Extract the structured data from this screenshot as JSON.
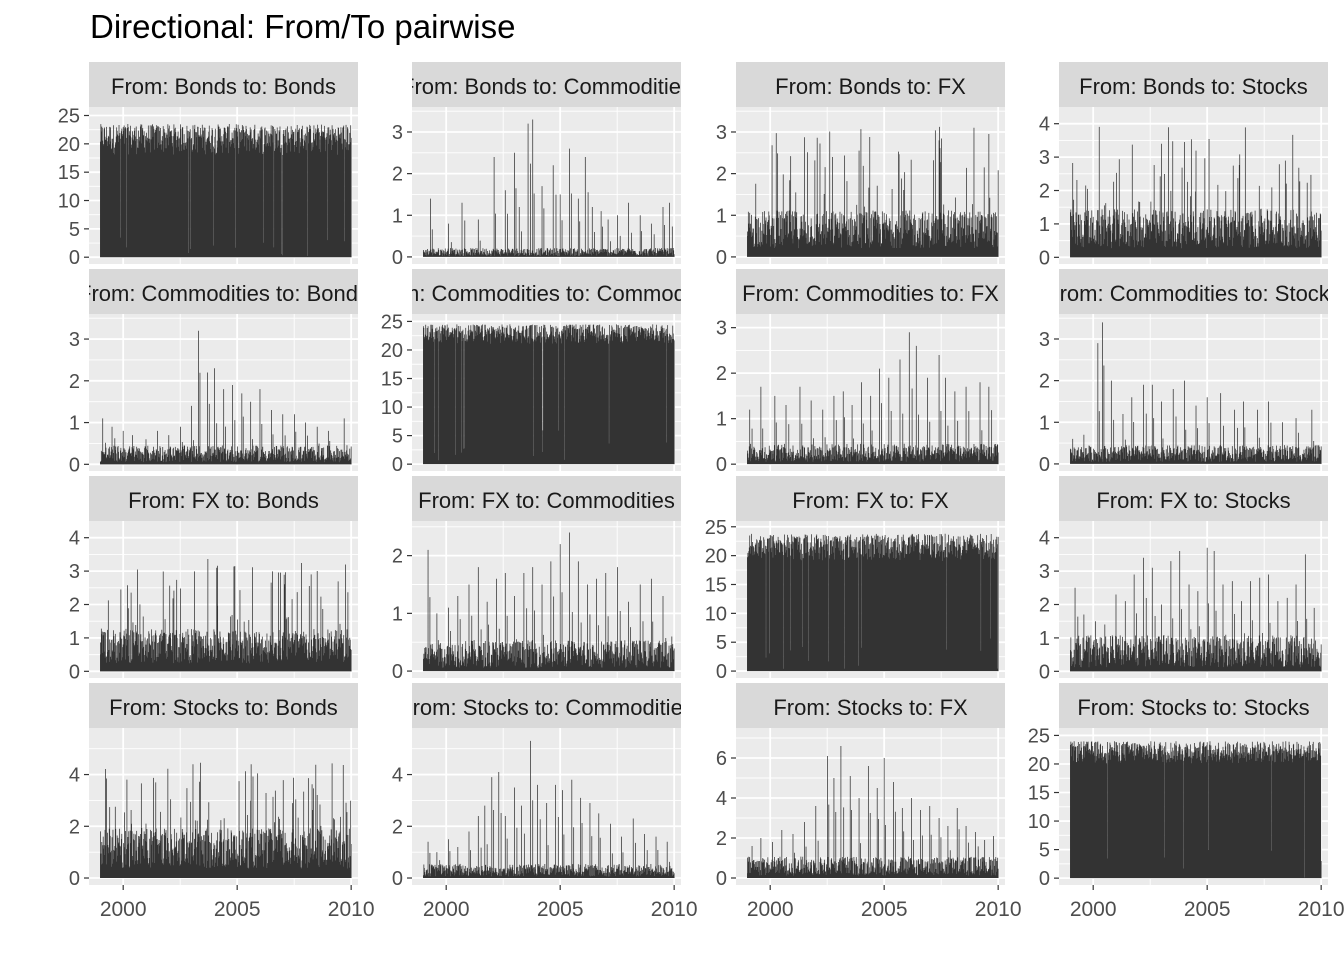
{
  "title": "Directional: From/To pairwise",
  "colors": {
    "panel_bg": "#ebebeb",
    "strip_bg": "#d9d9d9",
    "grid": "#ffffff",
    "bar": "#333333",
    "text": "#4d4d4d",
    "strip_text": "#1a1a1a"
  },
  "chart_data": {
    "type": "bar",
    "facet_grid": {
      "rows": 4,
      "cols": 4
    },
    "x_ticks": [
      "2000",
      "2005",
      "2010"
    ],
    "xlim": [
      1998.5,
      2010.3
    ],
    "data_range": [
      1999.0,
      2010.0
    ],
    "panels": [
      {
        "label": "From: Bonds  to: Bonds",
        "yticks": [
          "0",
          "5",
          "10",
          "15",
          "20",
          "25"
        ],
        "ylim": [
          -1.2,
          26.5
        ],
        "profile": {
          "kind": "dense",
          "base": 18.0,
          "max": 23.5
        }
      },
      {
        "label": "From: Bonds  to: Commodities",
        "yticks": [
          "0",
          "1",
          "2",
          "3"
        ],
        "ylim": [
          -0.17,
          3.6
        ],
        "profile": {
          "kind": "sparse",
          "base": 0.12,
          "spikes": [
            [
              1999.3,
              1.4
            ],
            [
              2000.1,
              0.8
            ],
            [
              2000.7,
              1.3
            ],
            [
              2001.4,
              0.9
            ],
            [
              2002.1,
              2.4
            ],
            [
              2002.6,
              1.6
            ],
            [
              2003.0,
              2.5
            ],
            [
              2003.2,
              1.2
            ],
            [
              2003.6,
              3.2
            ],
            [
              2003.8,
              3.3
            ],
            [
              2004.2,
              1.7
            ],
            [
              2004.7,
              2.2
            ],
            [
              2005.0,
              1.5
            ],
            [
              2005.4,
              2.6
            ],
            [
              2005.8,
              1.4
            ],
            [
              2006.1,
              2.4
            ],
            [
              2006.4,
              1.2
            ],
            [
              2006.8,
              1.1
            ],
            [
              2007.1,
              0.9
            ],
            [
              2007.5,
              1.0
            ],
            [
              2008.0,
              1.3
            ],
            [
              2008.5,
              1.0
            ],
            [
              2009.0,
              0.8
            ],
            [
              2009.5,
              1.2
            ],
            [
              2009.8,
              1.3
            ]
          ]
        }
      },
      {
        "label": "From: Bonds  to: FX",
        "yticks": [
          "0",
          "1",
          "2",
          "3"
        ],
        "ylim": [
          -0.17,
          3.6
        ],
        "profile": {
          "kind": "medium",
          "base": 0.7,
          "max": 3.3
        }
      },
      {
        "label": "From: Bonds  to: Stocks",
        "yticks": [
          "0",
          "1",
          "2",
          "3",
          "4"
        ],
        "ylim": [
          -0.2,
          4.5
        ],
        "profile": {
          "kind": "medium",
          "base": 0.9,
          "max": 4.0
        }
      },
      {
        "label": "From: Commodities  to: Bonds",
        "yticks": [
          "0",
          "1",
          "2",
          "3"
        ],
        "ylim": [
          -0.16,
          3.6
        ],
        "profile": {
          "kind": "sparse",
          "base": 0.25,
          "spikes": [
            [
              1999.1,
              1.1
            ],
            [
              1999.5,
              0.9
            ],
            [
              2000.0,
              0.8
            ],
            [
              2000.4,
              0.7
            ],
            [
              2001.0,
              0.6
            ],
            [
              2001.5,
              0.8
            ],
            [
              2002.0,
              0.7
            ],
            [
              2002.5,
              0.9
            ],
            [
              2003.0,
              1.4
            ],
            [
              2003.3,
              3.2
            ],
            [
              2003.7,
              2.2
            ],
            [
              2004.0,
              2.3
            ],
            [
              2004.4,
              1.8
            ],
            [
              2004.8,
              1.9
            ],
            [
              2005.2,
              1.7
            ],
            [
              2005.6,
              1.5
            ],
            [
              2006.0,
              1.8
            ],
            [
              2006.5,
              1.3
            ],
            [
              2007.0,
              1.2
            ],
            [
              2007.5,
              1.2
            ],
            [
              2008.0,
              1.0
            ],
            [
              2008.5,
              0.9
            ],
            [
              2009.0,
              0.8
            ],
            [
              2009.7,
              1.1
            ]
          ]
        }
      },
      {
        "label": "From: Commodities  to: Commodities",
        "yticks": [
          "0",
          "5",
          "10",
          "15",
          "20",
          "25"
        ],
        "ylim": [
          -1.2,
          26.3
        ],
        "profile": {
          "kind": "dense",
          "base": 21.0,
          "max": 24.5
        }
      },
      {
        "label": "From: Commodities  to: FX",
        "yticks": [
          "0",
          "1",
          "2",
          "3"
        ],
        "ylim": [
          -0.15,
          3.3
        ],
        "profile": {
          "kind": "sparse",
          "base": 0.25,
          "spikes": [
            [
              1999.1,
              1.2
            ],
            [
              1999.6,
              1.7
            ],
            [
              2000.2,
              1.5
            ],
            [
              2000.7,
              1.3
            ],
            [
              2001.3,
              1.7
            ],
            [
              2001.8,
              1.4
            ],
            [
              2002.3,
              1.2
            ],
            [
              2002.8,
              1.5
            ],
            [
              2003.2,
              1.6
            ],
            [
              2003.6,
              1.3
            ],
            [
              2004.0,
              1.8
            ],
            [
              2004.4,
              1.5
            ],
            [
              2004.8,
              2.1
            ],
            [
              2005.2,
              1.9
            ],
            [
              2005.7,
              2.3
            ],
            [
              2006.1,
              2.9
            ],
            [
              2006.4,
              2.6
            ],
            [
              2006.9,
              1.9
            ],
            [
              2007.4,
              2.4
            ],
            [
              2007.7,
              1.9
            ],
            [
              2008.1,
              1.6
            ],
            [
              2008.6,
              1.7
            ],
            [
              2009.2,
              1.8
            ],
            [
              2009.6,
              1.7
            ]
          ]
        }
      },
      {
        "label": "From: Commodities  to: Stocks",
        "yticks": [
          "0",
          "1",
          "2",
          "3"
        ],
        "ylim": [
          -0.17,
          3.6
        ],
        "profile": {
          "kind": "sparse",
          "base": 0.25,
          "spikes": [
            [
              1999.1,
              0.6
            ],
            [
              1999.6,
              0.7
            ],
            [
              2000.2,
              2.9
            ],
            [
              2000.4,
              3.4
            ],
            [
              2000.8,
              2.0
            ],
            [
              2001.3,
              1.2
            ],
            [
              2001.7,
              1.6
            ],
            [
              2002.2,
              1.9
            ],
            [
              2002.6,
              1.9
            ],
            [
              2003.0,
              1.5
            ],
            [
              2003.5,
              1.8
            ],
            [
              2004.0,
              2.0
            ],
            [
              2004.5,
              1.4
            ],
            [
              2005.0,
              1.6
            ],
            [
              2005.6,
              1.7
            ],
            [
              2006.2,
              1.3
            ],
            [
              2006.6,
              1.5
            ],
            [
              2007.2,
              1.3
            ],
            [
              2007.7,
              1.5
            ],
            [
              2008.3,
              1.0
            ],
            [
              2008.9,
              1.1
            ],
            [
              2009.6,
              1.3
            ]
          ]
        }
      },
      {
        "label": "From: FX  to: Bonds",
        "yticks": [
          "0",
          "1",
          "2",
          "3",
          "4"
        ],
        "ylim": [
          -0.2,
          4.5
        ],
        "profile": {
          "kind": "medium",
          "base": 0.8,
          "max": 3.4
        }
      },
      {
        "label": "From: FX  to: Commodities",
        "yticks": [
          "0",
          "1",
          "2"
        ],
        "ylim": [
          -0.12,
          2.6
        ],
        "profile": {
          "kind": "sparse",
          "base": 0.3,
          "spikes": [
            [
              1999.2,
              2.1
            ],
            [
              1999.6,
              1.0
            ],
            [
              2000.1,
              1.1
            ],
            [
              2000.5,
              1.3
            ],
            [
              2001.0,
              1.5
            ],
            [
              2001.4,
              1.8
            ],
            [
              2001.8,
              1.2
            ],
            [
              2002.2,
              1.6
            ],
            [
              2002.6,
              1.7
            ],
            [
              2003.0,
              1.3
            ],
            [
              2003.4,
              1.7
            ],
            [
              2003.8,
              1.8
            ],
            [
              2004.2,
              1.5
            ],
            [
              2004.6,
              1.9
            ],
            [
              2005.0,
              2.2
            ],
            [
              2005.4,
              2.4
            ],
            [
              2005.8,
              1.9
            ],
            [
              2006.2,
              1.5
            ],
            [
              2006.6,
              1.6
            ],
            [
              2007.0,
              1.7
            ],
            [
              2007.5,
              1.8
            ],
            [
              2008.0,
              1.2
            ],
            [
              2008.5,
              1.5
            ],
            [
              2009.0,
              1.6
            ],
            [
              2009.5,
              1.3
            ],
            [
              2009.9,
              0.6
            ]
          ]
        }
      },
      {
        "label": "From: FX  to: FX",
        "yticks": [
          "0",
          "5",
          "10",
          "15",
          "20",
          "25"
        ],
        "ylim": [
          -1.2,
          26.0
        ],
        "profile": {
          "kind": "dense",
          "base": 19.0,
          "max": 23.8
        }
      },
      {
        "label": "From: FX  to: Stocks",
        "yticks": [
          "0",
          "1",
          "2",
          "3",
          "4"
        ],
        "ylim": [
          -0.2,
          4.5
        ],
        "profile": {
          "kind": "sparse",
          "base": 0.6,
          "spikes": [
            [
              1999.2,
              2.5
            ],
            [
              1999.6,
              1.7
            ],
            [
              2000.1,
              1.5
            ],
            [
              2000.5,
              1.4
            ],
            [
              2001.0,
              2.3
            ],
            [
              2001.4,
              2.1
            ],
            [
              2001.8,
              2.9
            ],
            [
              2002.2,
              3.4
            ],
            [
              2002.6,
              3.1
            ],
            [
              2003.0,
              2.0
            ],
            [
              2003.4,
              3.3
            ],
            [
              2003.8,
              3.6
            ],
            [
              2004.2,
              2.6
            ],
            [
              2004.6,
              2.4
            ],
            [
              2005.0,
              3.7
            ],
            [
              2005.3,
              3.6
            ],
            [
              2005.7,
              2.6
            ],
            [
              2006.1,
              2.7
            ],
            [
              2006.5,
              2.1
            ],
            [
              2006.9,
              2.7
            ],
            [
              2007.3,
              2.8
            ],
            [
              2007.7,
              2.9
            ],
            [
              2008.1,
              2.1
            ],
            [
              2008.5,
              2.2
            ],
            [
              2008.9,
              2.6
            ],
            [
              2009.3,
              3.5
            ],
            [
              2009.7,
              1.9
            ]
          ]
        }
      },
      {
        "label": "From: Stocks  to: Bonds",
        "yticks": [
          "0",
          "2",
          "4"
        ],
        "ylim": [
          -0.27,
          5.8
        ],
        "profile": {
          "kind": "medium",
          "base": 1.2,
          "max": 4.5
        }
      },
      {
        "label": "From: Stocks  to: Commodities",
        "yticks": [
          "0",
          "2",
          "4"
        ],
        "ylim": [
          -0.27,
          5.8
        ],
        "profile": {
          "kind": "sparse",
          "base": 0.3,
          "spikes": [
            [
              1999.2,
              1.4
            ],
            [
              1999.6,
              1.0
            ],
            [
              2000.1,
              1.5
            ],
            [
              2000.5,
              1.2
            ],
            [
              2001.0,
              1.8
            ],
            [
              2001.4,
              2.4
            ],
            [
              2001.7,
              2.8
            ],
            [
              2002.0,
              3.9
            ],
            [
              2002.3,
              4.1
            ],
            [
              2002.6,
              2.4
            ],
            [
              2003.0,
              3.5
            ],
            [
              2003.3,
              2.8
            ],
            [
              2003.7,
              5.3
            ],
            [
              2004.0,
              3.6
            ],
            [
              2004.4,
              2.9
            ],
            [
              2004.8,
              3.6
            ],
            [
              2005.1,
              3.4
            ],
            [
              2005.5,
              3.8
            ],
            [
              2005.9,
              3.1
            ],
            [
              2006.3,
              2.9
            ],
            [
              2006.7,
              2.5
            ],
            [
              2007.2,
              2.1
            ],
            [
              2007.7,
              1.6
            ],
            [
              2008.2,
              2.3
            ],
            [
              2008.7,
              1.7
            ],
            [
              2009.2,
              1.6
            ],
            [
              2009.7,
              1.4
            ]
          ]
        }
      },
      {
        "label": "From: Stocks  to: FX",
        "yticks": [
          "0",
          "2",
          "4",
          "6"
        ],
        "ylim": [
          -0.35,
          7.5
        ],
        "profile": {
          "kind": "sparse",
          "base": 0.6,
          "spikes": [
            [
              1999.2,
              1.6
            ],
            [
              1999.6,
              2.0
            ],
            [
              2000.1,
              1.8
            ],
            [
              2000.5,
              2.4
            ],
            [
              2001.0,
              2.2
            ],
            [
              2001.5,
              2.8
            ],
            [
              2002.0,
              3.6
            ],
            [
              2002.5,
              6.1
            ],
            [
              2002.8,
              5.0
            ],
            [
              2003.1,
              6.6
            ],
            [
              2003.5,
              5.1
            ],
            [
              2003.9,
              4.0
            ],
            [
              2004.3,
              5.6
            ],
            [
              2004.7,
              4.5
            ],
            [
              2005.0,
              6.0
            ],
            [
              2005.4,
              4.8
            ],
            [
              2005.8,
              3.5
            ],
            [
              2006.2,
              4.0
            ],
            [
              2006.6,
              3.4
            ],
            [
              2007.0,
              3.6
            ],
            [
              2007.4,
              3.0
            ],
            [
              2007.8,
              2.6
            ],
            [
              2008.2,
              3.5
            ],
            [
              2008.6,
              2.6
            ],
            [
              2009.0,
              2.3
            ],
            [
              2009.4,
              1.9
            ],
            [
              2009.8,
              2.1
            ]
          ]
        }
      },
      {
        "label": "From: Stocks  to: Stocks",
        "yticks": [
          "0",
          "5",
          "10",
          "15",
          "20",
          "25"
        ],
        "ylim": [
          -1.2,
          26.3
        ],
        "profile": {
          "kind": "dense",
          "base": 20.0,
          "max": 24.0
        }
      }
    ]
  }
}
